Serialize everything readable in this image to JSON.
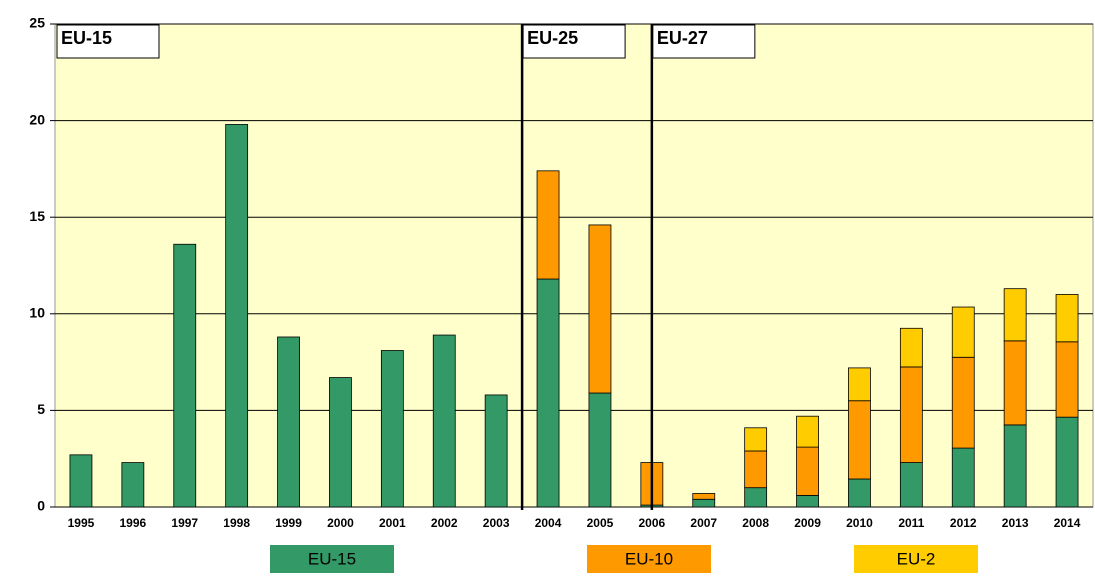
{
  "chart_data": {
    "type": "stacked-bar",
    "categories": [
      "1995",
      "1996",
      "1997",
      "1998",
      "1999",
      "2000",
      "2001",
      "2002",
      "2003",
      "2004",
      "2005",
      "2006",
      "2007",
      "2008",
      "2009",
      "2010",
      "2011",
      "2012",
      "2013",
      "2014"
    ],
    "series": [
      {
        "name": "EU-15",
        "color": "#339966",
        "values": [
          2.7,
          2.3,
          13.6,
          19.8,
          8.8,
          6.7,
          8.1,
          8.9,
          5.8,
          11.8,
          5.9,
          0.1,
          0.4,
          1.0,
          0.6,
          1.45,
          2.3,
          3.05,
          4.25,
          4.65
        ]
      },
      {
        "name": "EU-10",
        "color": "#ff9900",
        "values": [
          null,
          null,
          null,
          null,
          null,
          null,
          null,
          null,
          null,
          5.6,
          8.7,
          2.2,
          0.3,
          1.9,
          2.5,
          4.05,
          4.95,
          4.7,
          4.35,
          3.9
        ]
      },
      {
        "name": "EU-2",
        "color": "#ffcc00",
        "values": [
          null,
          null,
          null,
          null,
          null,
          null,
          null,
          null,
          null,
          null,
          null,
          null,
          null,
          1.2,
          1.6,
          1.7,
          2.0,
          2.6,
          2.7,
          2.45
        ]
      }
    ],
    "annotations": [
      "EU-15",
      "EU-25",
      "EU-27"
    ],
    "ylim": [
      0,
      25
    ],
    "yticks": [
      0,
      5,
      10,
      15,
      20,
      25
    ],
    "grid": true
  }
}
